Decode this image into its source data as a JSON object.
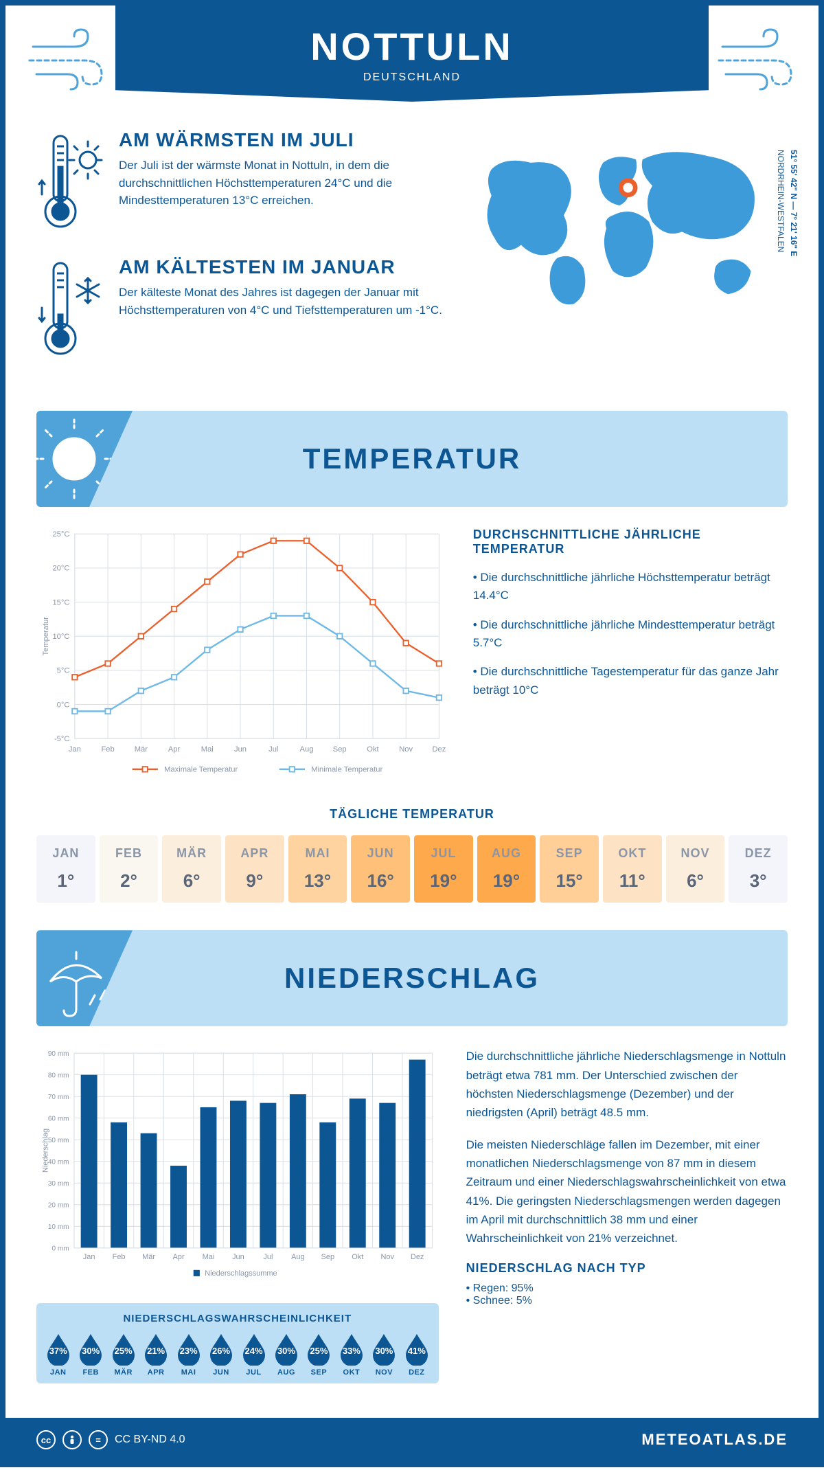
{
  "colors": {
    "primary": "#0d5694",
    "light_blue": "#bddff5",
    "mid_blue": "#4fa3d9",
    "orange": "#e9602d",
    "chart_blue": "#6db8e6",
    "grid": "#d6dde6",
    "axis_text": "#8a96a8"
  },
  "header": {
    "title": "NOTTULN",
    "subtitle": "DEUTSCHLAND"
  },
  "coords": {
    "line1": "51° 55' 42\" N — 7° 21' 16\" E",
    "line2": "NORDRHEIN-WESTFALEN"
  },
  "fact_warm": {
    "title": "AM WÄRMSTEN IM JULI",
    "text": "Der Juli ist der wärmste Monat in Nottuln, in dem die durchschnittlichen Höchsttemperaturen 24°C und die Mindesttemperaturen 13°C erreichen."
  },
  "fact_cold": {
    "title": "AM KÄLTESTEN IM JANUAR",
    "text": "Der kälteste Monat des Jahres ist dagegen der Januar mit Höchsttemperaturen von 4°C und Tiefsttemperaturen um -1°C."
  },
  "section_temp": "TEMPERATUR",
  "section_precip": "NIEDERSCHLAG",
  "temp_chart": {
    "months": [
      "Jan",
      "Feb",
      "Mär",
      "Apr",
      "Mai",
      "Jun",
      "Jul",
      "Aug",
      "Sep",
      "Okt",
      "Nov",
      "Dez"
    ],
    "max": [
      4,
      6,
      10,
      14,
      18,
      22,
      24,
      24,
      20,
      15,
      9,
      6
    ],
    "min": [
      -1,
      -1,
      2,
      4,
      8,
      11,
      13,
      13,
      10,
      6,
      2,
      1
    ],
    "yticks": [
      -5,
      0,
      5,
      10,
      15,
      20,
      25
    ],
    "ytick_labels": [
      "-5°C",
      "0°C",
      "5°C",
      "10°C",
      "15°C",
      "20°C",
      "25°C"
    ],
    "ylabel": "Temperatur",
    "legend_max": "Maximale Temperatur",
    "legend_min": "Minimale Temperatur",
    "max_color": "#e9602d",
    "min_color": "#6db8e6"
  },
  "temp_text": {
    "heading": "DURCHSCHNITTLICHE JÄHRLICHE TEMPERATUR",
    "b1": "• Die durchschnittliche jährliche Höchsttemperatur beträgt 14.4°C",
    "b2": "• Die durchschnittliche jährliche Mindesttemperatur beträgt 5.7°C",
    "b3": "• Die durchschnittliche Tagestemperatur für das ganze Jahr beträgt 10°C"
  },
  "daily_temp": {
    "heading": "TÄGLICHE TEMPERATUR",
    "months": [
      "JAN",
      "FEB",
      "MÄR",
      "APR",
      "MAI",
      "JUN",
      "JUL",
      "AUG",
      "SEP",
      "OKT",
      "NOV",
      "DEZ"
    ],
    "values": [
      "1°",
      "2°",
      "6°",
      "9°",
      "13°",
      "16°",
      "19°",
      "19°",
      "15°",
      "11°",
      "6°",
      "3°"
    ],
    "bg_colors": [
      "#f3f5fa",
      "#faf7f1",
      "#fceedd",
      "#fde3c4",
      "#ffd39f",
      "#ffc079",
      "#ffa94d",
      "#ffa94d",
      "#ffcf97",
      "#fde3c4",
      "#fceedd",
      "#f3f5fa"
    ]
  },
  "precip_chart": {
    "months": [
      "Jan",
      "Feb",
      "Mär",
      "Apr",
      "Mai",
      "Jun",
      "Jul",
      "Aug",
      "Sep",
      "Okt",
      "Nov",
      "Dez"
    ],
    "values": [
      80,
      58,
      53,
      38,
      65,
      68,
      67,
      71,
      58,
      69,
      67,
      87
    ],
    "yticks": [
      0,
      10,
      20,
      30,
      40,
      50,
      60,
      70,
      80,
      90
    ],
    "ytick_labels": [
      "0 mm",
      "10 mm",
      "20 mm",
      "30 mm",
      "40 mm",
      "50 mm",
      "60 mm",
      "70 mm",
      "80 mm",
      "90 mm"
    ],
    "ylabel": "Niederschlag",
    "legend": "Niederschlagssumme",
    "bar_color": "#0d5694"
  },
  "precip_text": {
    "p1": "Die durchschnittliche jährliche Niederschlagsmenge in Nottuln beträgt etwa 781 mm. Der Unterschied zwischen der höchsten Niederschlagsmenge (Dezember) und der niedrigsten (April) beträgt 48.5 mm.",
    "p2": "Die meisten Niederschläge fallen im Dezember, mit einer monatlichen Niederschlagsmenge von 87 mm in diesem Zeitraum und einer Niederschlagswahrscheinlichkeit von etwa 41%. Die geringsten Niederschlagsmengen werden dagegen im April mit durchschnittlich 38 mm und einer Wahrscheinlichkeit von 21% verzeichnet.",
    "type_heading": "NIEDERSCHLAG NACH TYP",
    "type1": "• Regen: 95%",
    "type2": "• Schnee: 5%"
  },
  "prob": {
    "heading": "NIEDERSCHLAGSWAHRSCHEINLICHKEIT",
    "months": [
      "JAN",
      "FEB",
      "MÄR",
      "APR",
      "MAI",
      "JUN",
      "JUL",
      "AUG",
      "SEP",
      "OKT",
      "NOV",
      "DEZ"
    ],
    "values": [
      "37%",
      "30%",
      "25%",
      "21%",
      "23%",
      "26%",
      "24%",
      "30%",
      "25%",
      "33%",
      "30%",
      "41%"
    ]
  },
  "footer": {
    "license": "CC BY-ND 4.0",
    "site": "METEOATLAS.DE"
  }
}
